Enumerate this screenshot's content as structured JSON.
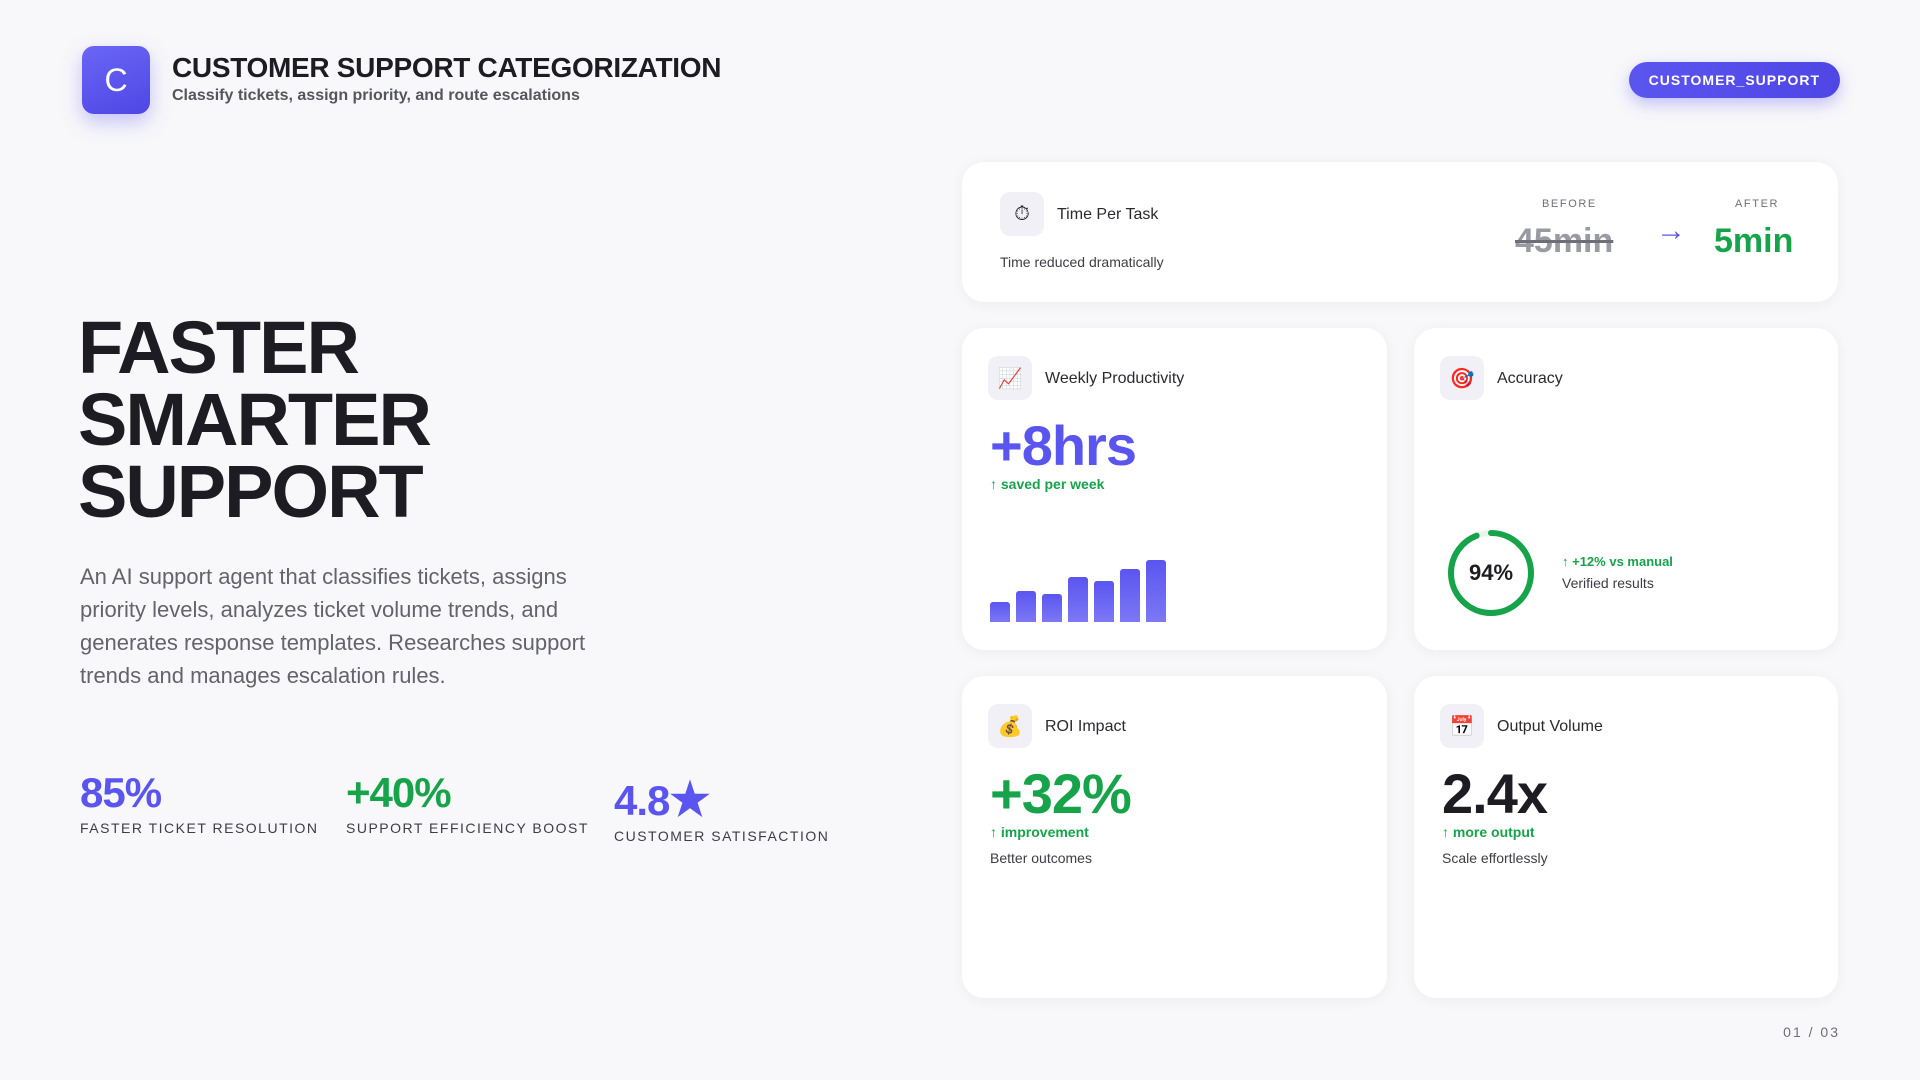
{
  "header": {
    "logo_letter": "C",
    "title": "CUSTOMER SUPPORT CATEGORIZATION",
    "subtitle": "Classify tickets, assign priority, and route escalations",
    "tag": "CUSTOMER_SUPPORT"
  },
  "hero": {
    "lines": [
      "FASTER",
      "SMARTER",
      "SUPPORT"
    ],
    "description": "An AI support agent that classifies tickets, assigns priority levels, analyzes ticket volume trends, and generates response templates. Researches support trends and manages escalation rules."
  },
  "stats": [
    {
      "value": "85%",
      "label": "FASTER TICKET RESOLUTION"
    },
    {
      "value": "+40%",
      "label": "SUPPORT EFFICIENCY BOOST"
    },
    {
      "value": "4.8",
      "star": "★",
      "label": "CUSTOMER SATISFACTION"
    }
  ],
  "time_card": {
    "icon": "stopwatch-icon",
    "icon_glyph": "⏱",
    "title": "Time Per Task",
    "subtitle": "Time reduced dramatically",
    "before_label": "BEFORE",
    "before_value": "45min",
    "arrow": "→",
    "after_label": "AFTER",
    "after_value": "5min"
  },
  "productivity_card": {
    "icon": "chart-increasing-icon",
    "icon_glyph": "📈",
    "title": "Weekly Productivity",
    "value": "+8hrs",
    "delta": "↑ saved per week",
    "bar_levels": [
      0.33,
      0.5,
      0.45,
      0.72,
      0.66,
      0.86,
      1.0
    ]
  },
  "accuracy_card": {
    "icon": "target-icon",
    "icon_glyph": "🎯",
    "title": "Accuracy",
    "value": "94%",
    "percent": 94,
    "delta": "↑ +12% vs manual",
    "note": "Verified results"
  },
  "roi_card": {
    "icon": "money-bag-icon",
    "icon_glyph": "💰",
    "title": "ROI Impact",
    "value": "+32%",
    "delta": "↑ improvement",
    "note": "Better outcomes"
  },
  "output_card": {
    "icon": "calendar-icon",
    "icon_glyph": "📅",
    "title": "Output Volume",
    "value": "2.4x",
    "delta": "↑ more output",
    "note": "Scale effortlessly"
  },
  "colors": {
    "accent": "#5b55f0",
    "green": "#16a34a"
  },
  "page": "01 / 03"
}
